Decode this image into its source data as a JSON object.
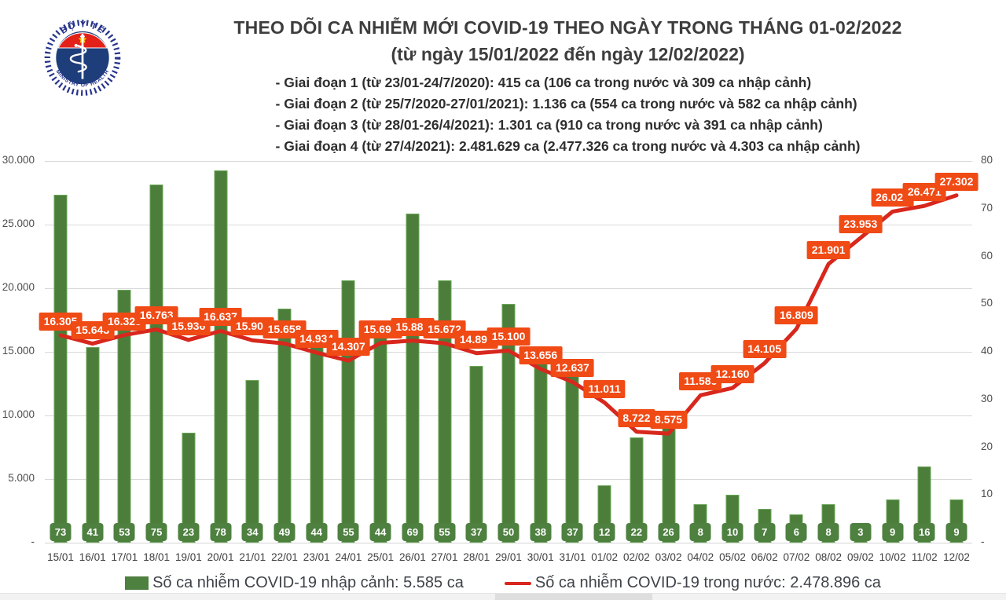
{
  "header": {
    "title": "THEO DÕI CA NHIỄM MỚI COVID-19 THEO NGÀY TRONG THÁNG 01-02/2022",
    "subtitle": "(từ ngày 15/01/2022 đến ngày 12/02/2022)",
    "phases": [
      "- Giai đoạn 1 (từ 23/01-24/7/2020): 415 ca (106 ca trong nước và 309 ca nhập cảnh)",
      "- Giai đoạn 2 (từ 25/7/2020-27/01/2021): 1.136 ca (554 ca trong nước và 582 ca nhập cảnh)",
      "- Giai đoạn 3 (từ 28/01-26/4/2021): 1.301 ca (910 ca trong nước và 391 ca nhập cảnh)",
      "- Giai đoạn 4 (từ 27/4/2021): 2.481.629 ca (2.477.326 ca trong nước và 4.303 ca nhập cảnh)"
    ],
    "logo": {
      "top_text": "BỘ Y TẾ",
      "bottom_text": "MINISTRY OF HEALTH"
    }
  },
  "chart_data": {
    "type": "bar+line",
    "categories": [
      "15/01",
      "16/01",
      "17/01",
      "18/01",
      "19/01",
      "20/01",
      "21/01",
      "22/01",
      "23/01",
      "24/01",
      "25/01",
      "26/01",
      "27/01",
      "28/01",
      "29/01",
      "30/01",
      "31/01",
      "01/02",
      "02/02",
      "03/02",
      "04/02",
      "05/02",
      "06/02",
      "07/02",
      "08/02",
      "09/02",
      "10/02",
      "11/02",
      "12/02"
    ],
    "series": [
      {
        "name": "Số ca nhiễm COVID-19 nhập cảnh",
        "type": "bar",
        "axis": "right",
        "color": "#4d7d3b",
        "values": [
          73,
          41,
          53,
          75,
          23,
          78,
          34,
          49,
          44,
          55,
          44,
          69,
          55,
          37,
          50,
          38,
          37,
          12,
          22,
          26,
          8,
          10,
          7,
          6,
          8,
          3,
          9,
          16,
          9
        ]
      },
      {
        "name": "Số ca nhiễm COVID-19 trong nước",
        "type": "line",
        "axis": "left",
        "color": "#d8271d",
        "label_bg": "#f04a15",
        "values": [
          16305,
          15643,
          16325,
          16763,
          15936,
          16637,
          15901,
          15658,
          14934,
          14307,
          15699,
          15885,
          15672,
          14892,
          15100,
          13656,
          12637,
          11011,
          8722,
          8575,
          11586,
          12160,
          14105,
          16809,
          21901,
          23953,
          26023,
          26471,
          27302
        ],
        "labels": [
          "16.305",
          "15.643",
          "16.325",
          "16.763",
          "15.936",
          "16.637",
          "15.901",
          "15.658",
          "14.934",
          "14.307",
          "15.699",
          "15.885",
          "15.672",
          "14.892",
          "15.100",
          "13.656",
          "12.637",
          "11.011",
          "8.722",
          "8.575",
          "11.586",
          "12.160",
          "14.105",
          "16.809",
          "21.901",
          "23.953",
          "26.023",
          "26.471",
          "27.302"
        ]
      }
    ],
    "left_axis": {
      "min": 0,
      "max": 30000,
      "step": 5000,
      "tick_labels": [
        "-",
        "5.000",
        "10.000",
        "15.000",
        "20.000",
        "25.000",
        "30.000"
      ]
    },
    "right_axis": {
      "min": 0,
      "max": 80,
      "step": 10,
      "tick_labels": [
        "-",
        "10",
        "20",
        "30",
        "40",
        "50",
        "60",
        "70",
        "80"
      ]
    },
    "grid": true,
    "legend_position": "bottom"
  },
  "legend": {
    "items": [
      {
        "label": "Số ca nhiễm COVID-19 nhập cảnh: 5.585 ca",
        "marker": "square",
        "color": "#4e8040"
      },
      {
        "label": "Số ca nhiễm COVID-19 trong nước: 2.478.896 ca",
        "marker": "line",
        "color": "#d8271d"
      }
    ]
  }
}
